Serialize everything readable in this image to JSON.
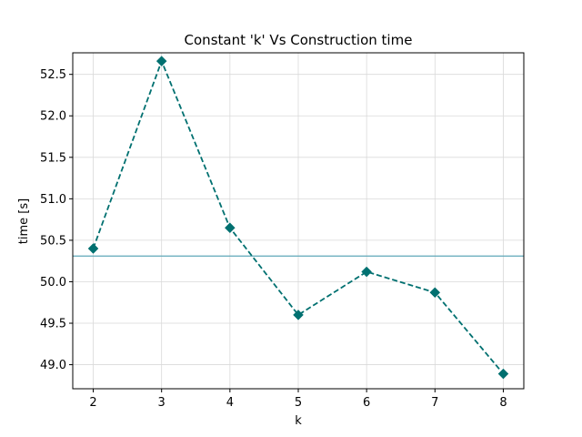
{
  "chart_data": {
    "type": "line",
    "title": "Constant 'k' Vs Construction time",
    "xlabel": "k",
    "ylabel": "time [s]",
    "x": [
      2,
      3,
      4,
      5,
      6,
      7,
      8
    ],
    "series": [
      {
        "values": [
          50.4,
          52.66,
          50.65,
          49.6,
          50.12,
          49.87,
          48.89
        ],
        "color": "#007070",
        "line_style": "dashed",
        "marker": "diamond"
      }
    ],
    "reference_line": {
      "y": 50.31,
      "color": "#5fa8b8"
    },
    "xticks": [
      "2",
      "3",
      "4",
      "5",
      "6",
      "7",
      "8"
    ],
    "yticks": [
      "49.0",
      "49.5",
      "50.0",
      "50.5",
      "51.0",
      "51.5",
      "52.0",
      "52.5"
    ],
    "xlim": [
      1.7,
      8.3
    ],
    "ylim": [
      48.71,
      52.76
    ],
    "grid": true
  }
}
